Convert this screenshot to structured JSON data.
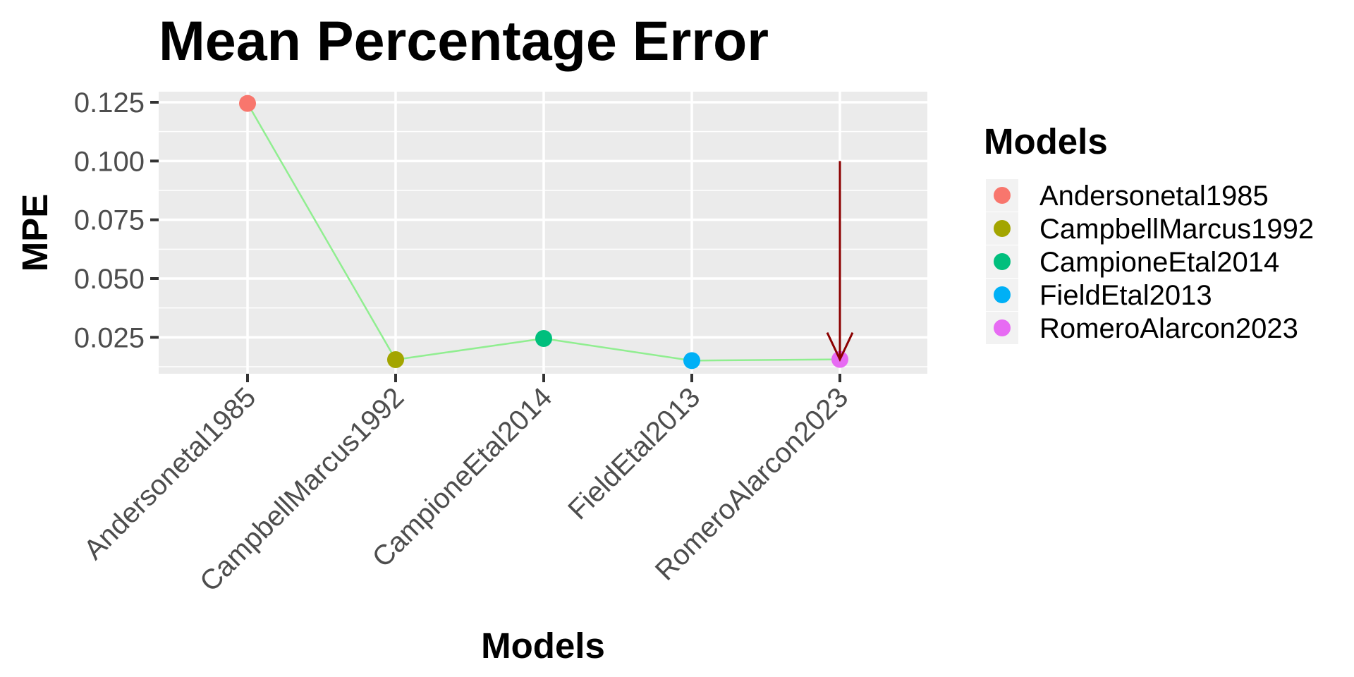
{
  "chart_data": {
    "type": "line",
    "title": "Mean Percentage Error",
    "xlabel": "Models",
    "ylabel": "MPE",
    "categories": [
      "Andersonetal1985",
      "CampbellMarcus1992",
      "CampioneEtal2014",
      "FieldEtal2013",
      "RomeroAlarcon2023"
    ],
    "values": [
      0.1245,
      0.0155,
      0.0245,
      0.0151,
      0.0156
    ],
    "point_colors": [
      "#F8766D",
      "#A3A500",
      "#00BF7D",
      "#00B0F6",
      "#E76BF3"
    ],
    "line_color": "#90EE90",
    "ylim": [
      0.0095,
      0.1295
    ],
    "yticks": [
      0.025,
      0.05,
      0.075,
      0.1,
      0.125
    ],
    "ytick_labels": [
      "0.025",
      "0.050",
      "0.075",
      "0.100",
      "0.125"
    ],
    "grid": true,
    "panel_background": "#EBEBEB",
    "annotation": {
      "type": "arrow",
      "x_category": "RomeroAlarcon2023",
      "y_from": 0.1,
      "y_to": 0.0156,
      "color": "#8B0000"
    },
    "legend": {
      "title": "Models",
      "position": "right",
      "entries": [
        "Andersonetal1985",
        "CampbellMarcus1992",
        "CampioneEtal2014",
        "FieldEtal2013",
        "RomeroAlarcon2023"
      ]
    }
  }
}
